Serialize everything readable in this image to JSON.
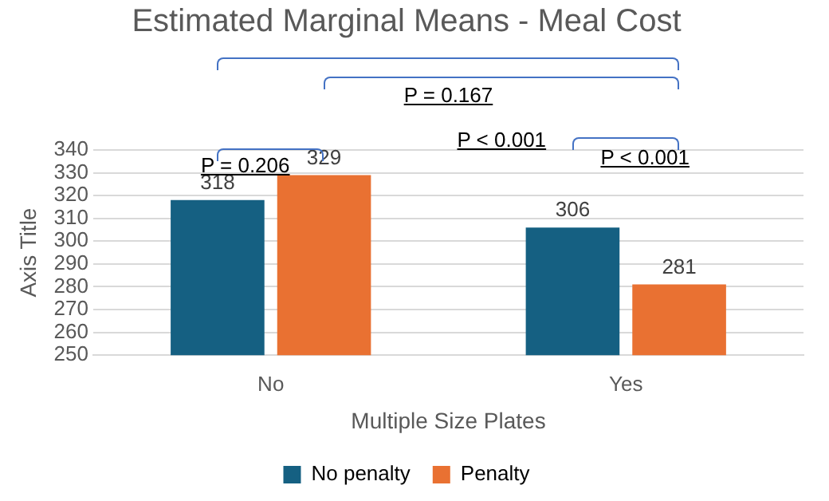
{
  "chart_data": {
    "type": "bar",
    "title": "Estimated Marginal Means - Meal Cost",
    "xlabel": "Multiple Size Plates",
    "ylabel": "Axis Title",
    "categories": [
      "No",
      "Yes"
    ],
    "series": [
      {
        "name": "No penalty",
        "color": "#156082",
        "values": [
          318,
          306
        ]
      },
      {
        "name": "Penalty",
        "color": "#e97132",
        "values": [
          329,
          281
        ]
      }
    ],
    "ylim": [
      250,
      340
    ],
    "yticks": [
      250,
      260,
      270,
      280,
      290,
      300,
      310,
      320,
      330,
      340
    ],
    "grid": "y",
    "legend": "bottom",
    "data_labels": true,
    "annotations": [
      "P = 0.167",
      "P = 0.206",
      "P < 0.001",
      "P < 0.001"
    ]
  }
}
